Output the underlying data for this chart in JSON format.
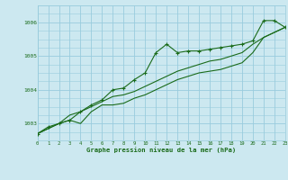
{
  "background_color": "#cce8f0",
  "grid_color": "#99ccdd",
  "line_color": "#1a6b1a",
  "x_min": 0,
  "x_max": 23,
  "y_min": 1002.5,
  "y_max": 1006.5,
  "y_ticks": [
    1003,
    1004,
    1005,
    1006
  ],
  "x_ticks": [
    0,
    1,
    2,
    3,
    4,
    5,
    6,
    7,
    8,
    9,
    10,
    11,
    12,
    13,
    14,
    15,
    16,
    17,
    18,
    19,
    20,
    21,
    22,
    23
  ],
  "xlabel": "Graphe pression niveau de la mer (hPa)",
  "series1": [
    [
      0,
      1002.7
    ],
    [
      1,
      1002.9
    ],
    [
      2,
      1003.0
    ],
    [
      3,
      1003.1
    ],
    [
      4,
      1003.35
    ],
    [
      5,
      1003.55
    ],
    [
      6,
      1003.7
    ],
    [
      7,
      1004.0
    ],
    [
      8,
      1004.05
    ],
    [
      9,
      1004.3
    ],
    [
      10,
      1004.5
    ],
    [
      11,
      1005.1
    ],
    [
      12,
      1005.35
    ],
    [
      13,
      1005.1
    ],
    [
      14,
      1005.15
    ],
    [
      15,
      1005.15
    ],
    [
      16,
      1005.2
    ],
    [
      17,
      1005.25
    ],
    [
      18,
      1005.3
    ],
    [
      19,
      1005.35
    ],
    [
      20,
      1005.45
    ],
    [
      21,
      1006.05
    ],
    [
      22,
      1006.05
    ],
    [
      23,
      1005.85
    ]
  ],
  "series2": [
    [
      0,
      1002.7
    ],
    [
      1,
      1002.85
    ],
    [
      2,
      1003.0
    ],
    [
      3,
      1003.25
    ],
    [
      4,
      1003.35
    ],
    [
      5,
      1003.5
    ],
    [
      6,
      1003.65
    ],
    [
      7,
      1003.8
    ],
    [
      8,
      1003.85
    ],
    [
      9,
      1003.95
    ],
    [
      10,
      1004.1
    ],
    [
      11,
      1004.25
    ],
    [
      12,
      1004.4
    ],
    [
      13,
      1004.55
    ],
    [
      14,
      1004.65
    ],
    [
      15,
      1004.75
    ],
    [
      16,
      1004.85
    ],
    [
      17,
      1004.9
    ],
    [
      18,
      1005.0
    ],
    [
      19,
      1005.1
    ],
    [
      20,
      1005.35
    ],
    [
      21,
      1005.55
    ],
    [
      22,
      1005.7
    ],
    [
      23,
      1005.85
    ]
  ],
  "series3": [
    [
      0,
      1002.7
    ],
    [
      1,
      1002.85
    ],
    [
      2,
      1003.0
    ],
    [
      3,
      1003.1
    ],
    [
      4,
      1003.0
    ],
    [
      5,
      1003.35
    ],
    [
      6,
      1003.55
    ],
    [
      7,
      1003.55
    ],
    [
      8,
      1003.6
    ],
    [
      9,
      1003.75
    ],
    [
      10,
      1003.85
    ],
    [
      11,
      1004.0
    ],
    [
      12,
      1004.15
    ],
    [
      13,
      1004.3
    ],
    [
      14,
      1004.4
    ],
    [
      15,
      1004.5
    ],
    [
      16,
      1004.55
    ],
    [
      17,
      1004.6
    ],
    [
      18,
      1004.7
    ],
    [
      19,
      1004.8
    ],
    [
      20,
      1005.1
    ],
    [
      21,
      1005.55
    ],
    [
      22,
      1005.7
    ],
    [
      23,
      1005.85
    ]
  ]
}
